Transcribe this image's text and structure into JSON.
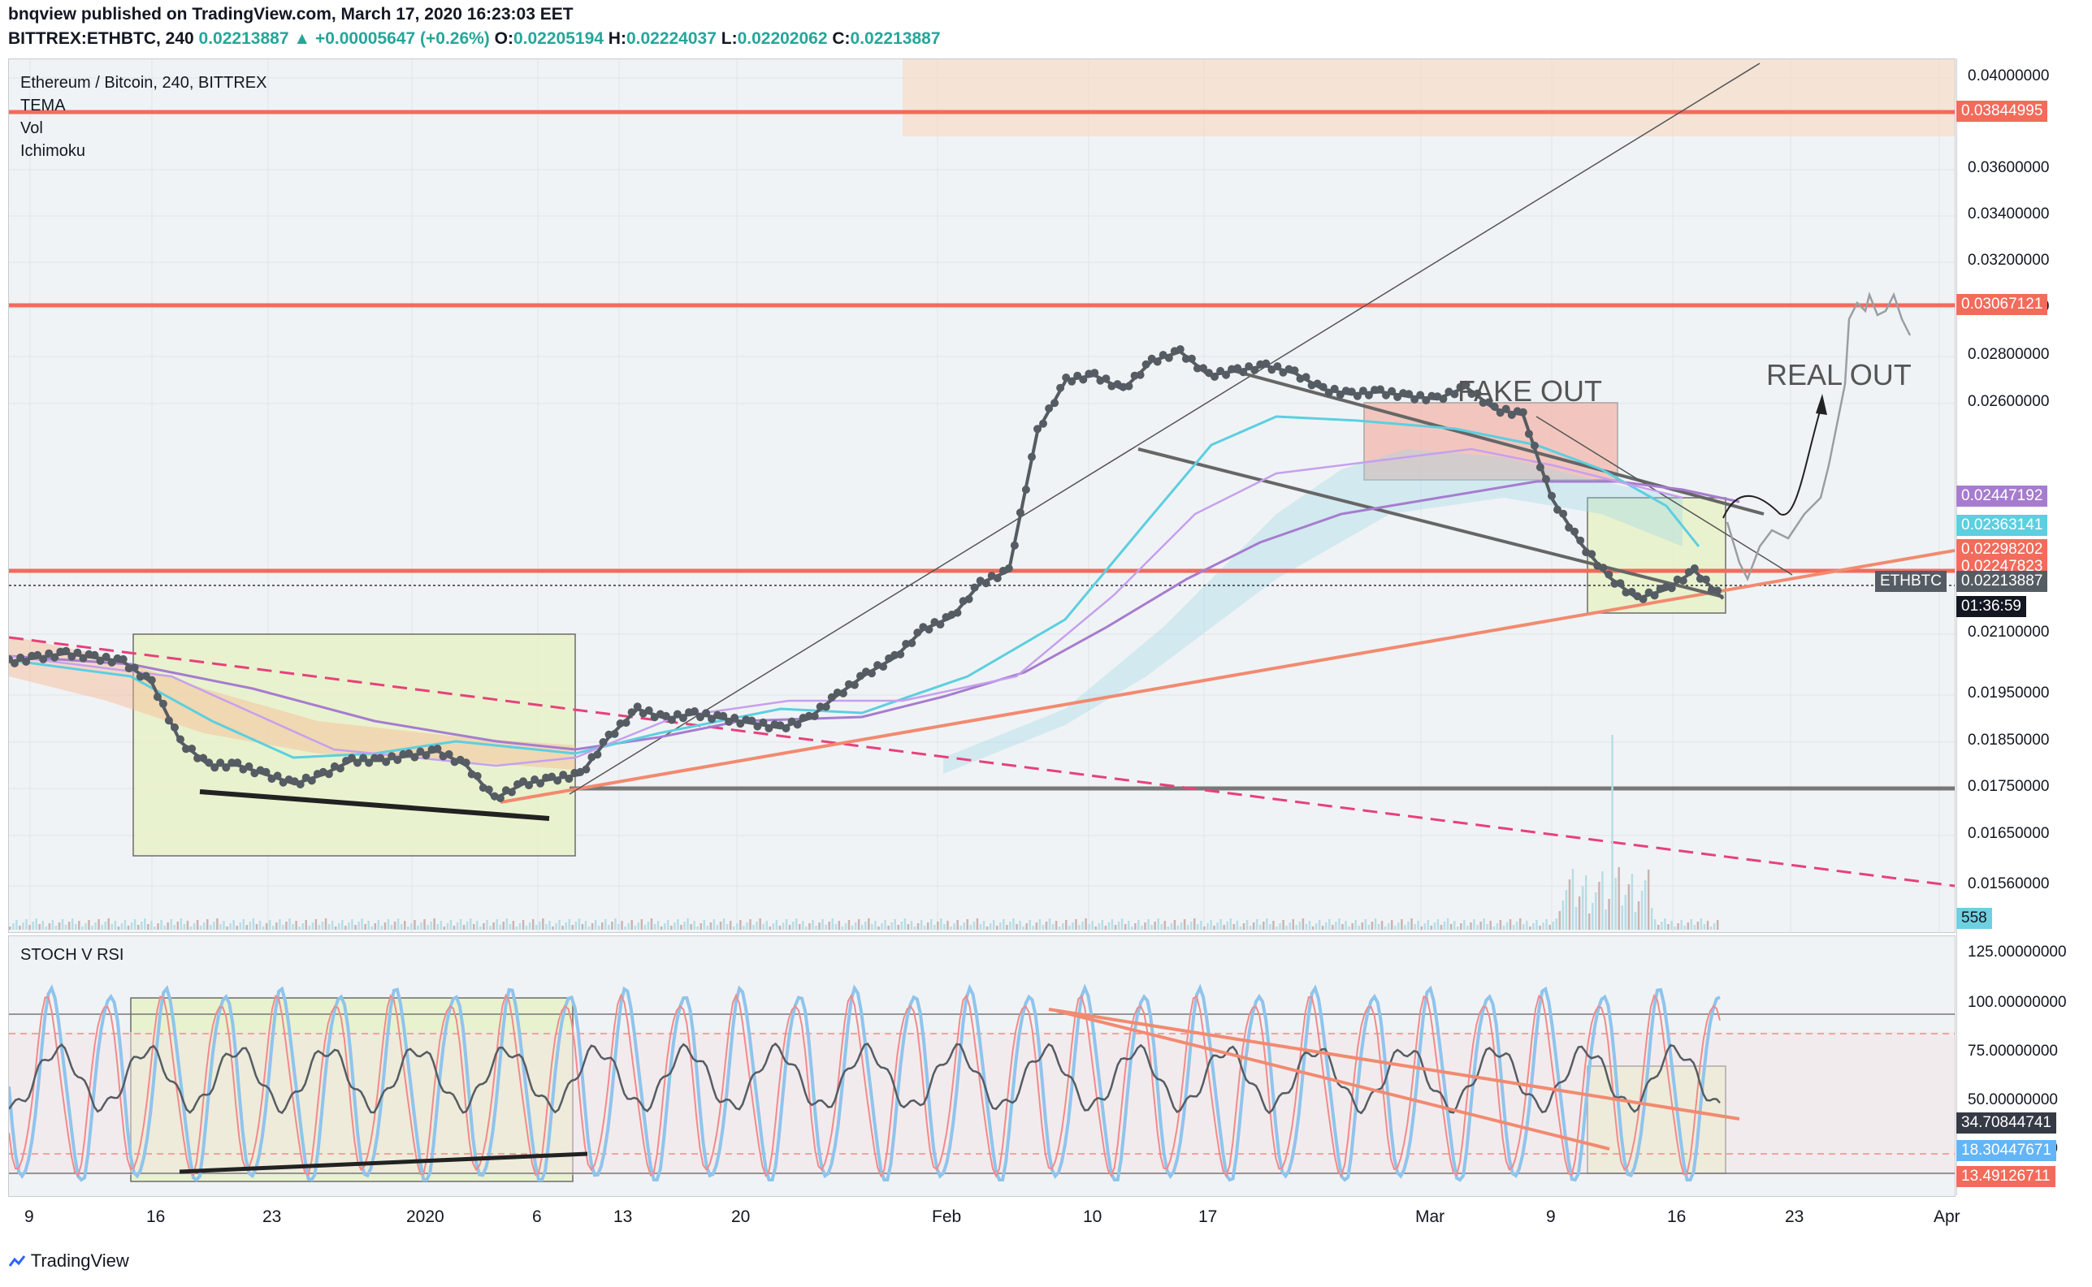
{
  "header": {
    "publisher_line": "bnqview published on TradingView.com, March 17, 2020 16:23:03 EET",
    "symbol": "BITTREX:ETHBTC, 240",
    "last": "0.02213887",
    "change": "▲ +0.00005647 (+0.26%)",
    "o_label": "O:",
    "o_value": "0.02205194",
    "h_label": "H:",
    "h_value": "0.02224037",
    "l_label": "L:",
    "l_value": "0.02202062",
    "c_label": "C:",
    "c_value": "0.02213887"
  },
  "legend": {
    "title": "Ethereum / Bitcoin, 240, BITTREX",
    "ind1": "TEMA",
    "ind2": "Vol",
    "ind3": "Ichimoku",
    "osc": "STOCH V RSI"
  },
  "annotations": {
    "fake_out": "FAKE OUT",
    "real_out": "REAL OUT"
  },
  "colors": {
    "resistance": "#f26b5b",
    "candles": "#555c63",
    "trend_dashed": "#e8407a",
    "support": "#666666",
    "box": "#e8f2c8",
    "pane_bg": "#f0f3f5"
  },
  "footer": {
    "brand": "TradingView"
  },
  "chart_data": [
    {
      "type": "line",
      "pane": "price",
      "y_axis_ticks": [
        "0.04000000",
        "0.03600000",
        "0.03400000",
        "0.03200000",
        "0.03000000",
        "0.02800000",
        "0.02600000",
        "0.02100000",
        "0.01950000",
        "0.01850000",
        "0.01750000",
        "0.01650000",
        "0.01560000"
      ],
      "price_labels": [
        {
          "value": "0.03844995",
          "color": "#f26b5b"
        },
        {
          "value": "0.03067121",
          "color": "#f26b5b"
        },
        {
          "value": "0.02447192",
          "color": "#a67ccf"
        },
        {
          "value": "0.02363141",
          "color": "#5ccfe0"
        },
        {
          "value": "0.02298202",
          "color": "#f26b5b"
        },
        {
          "value": "0.02247823",
          "color": "#f26b5b"
        },
        {
          "value": "0.02213887",
          "color": "#555c63"
        },
        {
          "value": "01:36:59",
          "color": "#ffffff"
        },
        {
          "value": "558",
          "color": "#6fd0e0"
        }
      ],
      "symbol_label": "ETHBTC",
      "x_ticks": [
        "9",
        "16",
        "23",
        "2020",
        "6",
        "13",
        "20",
        "Feb",
        "10",
        "17",
        "Mar",
        "9",
        "16",
        "23",
        "Apr"
      ],
      "horizontal_levels": [
        0.03844995,
        0.03067121,
        0.02298202,
        0.0175
      ],
      "series": [
        {
          "x": [
            0,
            1,
            2,
            3,
            4,
            5,
            6,
            7,
            8,
            9,
            10,
            11,
            12,
            13,
            14,
            15,
            16,
            17,
            18,
            19,
            20,
            21,
            22,
            23,
            24,
            25,
            26,
            27,
            28,
            29,
            30,
            31,
            32,
            33,
            34,
            35,
            36,
            37,
            38,
            39,
            40,
            41,
            42,
            43,
            44,
            45,
            46,
            47,
            48,
            49,
            50,
            51,
            52,
            53,
            54,
            55,
            56,
            57,
            58,
            59,
            60
          ],
          "values": [
            0.0203,
            0.0204,
            0.0205,
            0.0204,
            0.0203,
            0.0198,
            0.0185,
            0.018,
            0.018,
            0.0178,
            0.0176,
            0.0178,
            0.0181,
            0.0181,
            0.0182,
            0.0183,
            0.018,
            0.0173,
            0.0176,
            0.0177,
            0.0178,
            0.0186,
            0.0192,
            0.019,
            0.0191,
            0.019,
            0.0189,
            0.0188,
            0.019,
            0.0195,
            0.02,
            0.0204,
            0.0211,
            0.0215,
            0.0226,
            0.023,
            0.0255,
            0.027,
            0.0272,
            0.0266,
            0.0278,
            0.0282,
            0.0272,
            0.0274,
            0.0276,
            0.0273,
            0.0266,
            0.0264,
            0.0265,
            0.0263,
            0.0262,
            0.0267,
            0.0259,
            0.0258,
            0.0243,
            0.0235,
            0.0228,
            0.0221,
            0.0224,
            0.023,
            0.0221
          ]
        }
      ]
    },
    {
      "type": "line",
      "pane": "oscillator",
      "title": "STOCH V RSI",
      "y_axis_ticks": [
        "125.00000000",
        "100.00000000",
        "75.00000000",
        "50.00000000",
        "25.00000000"
      ],
      "value_labels": [
        {
          "value": "34.70844741",
          "color": "#363a45"
        },
        {
          "value": "18.30447671",
          "color": "#64b5f6"
        },
        {
          "value": "13.49126711",
          "color": "#f26b5b"
        }
      ],
      "ylim": [
        0,
        125
      ]
    }
  ]
}
